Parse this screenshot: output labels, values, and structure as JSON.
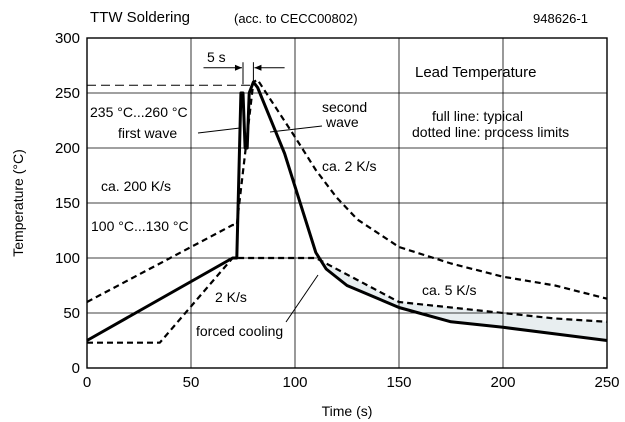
{
  "header": {
    "title": "TTW Soldering",
    "subtitle": "(acc. to CECC00802)",
    "figure_number": "948626-1"
  },
  "chart_data": {
    "type": "line",
    "title": "TTW Soldering",
    "xlabel": "Time (s)",
    "ylabel": "Temperature (°C)",
    "xlim": [
      0,
      250
    ],
    "ylim": [
      0,
      300
    ],
    "x_ticks": [
      0,
      50,
      100,
      150,
      200,
      250
    ],
    "y_ticks": [
      0,
      50,
      100,
      150,
      200,
      250,
      300
    ],
    "grid": true,
    "series": [
      {
        "style": "solid",
        "description_label": "typical",
        "points": [
          [
            0,
            25
          ],
          [
            70,
            100
          ],
          [
            72,
            100
          ],
          [
            74,
            250
          ],
          [
            75,
            250
          ],
          [
            76,
            200
          ],
          [
            77,
            200
          ],
          [
            78,
            250
          ],
          [
            80,
            260
          ],
          [
            82,
            255
          ],
          [
            95,
            195
          ],
          [
            105,
            135
          ],
          [
            110,
            105
          ],
          [
            115,
            90
          ],
          [
            125,
            75
          ],
          [
            150,
            55
          ],
          [
            175,
            42
          ],
          [
            200,
            37
          ],
          [
            225,
            31
          ],
          [
            250,
            25
          ]
        ]
      },
      {
        "style": "dotted",
        "description_label": "process limits (upper)",
        "points": [
          [
            0,
            60
          ],
          [
            70,
            130
          ],
          [
            72,
            130
          ],
          [
            80,
            260
          ],
          [
            82,
            262
          ],
          [
            100,
            210
          ],
          [
            110,
            180
          ],
          [
            120,
            155
          ],
          [
            130,
            135
          ],
          [
            150,
            110
          ],
          [
            175,
            95
          ],
          [
            200,
            83
          ],
          [
            225,
            75
          ],
          [
            250,
            63
          ]
        ]
      },
      {
        "style": "dotted",
        "description_label": "process limits (lower)",
        "points": [
          [
            0,
            23
          ],
          [
            35,
            23
          ],
          [
            70,
            100
          ],
          [
            72,
            100
          ],
          [
            110,
            100
          ],
          [
            130,
            80
          ],
          [
            150,
            60
          ],
          [
            175,
            55
          ],
          [
            200,
            50
          ],
          [
            225,
            45
          ],
          [
            250,
            42
          ]
        ]
      }
    ],
    "annotations": {
      "lead_temp": "Lead Temperature",
      "legend_full": "full line: typical",
      "legend_dotted": "dotted line: process limits",
      "temp_range_wave": "235 °C...260 °C",
      "first_wave": "first wave",
      "second_wave_1": "second",
      "second_wave_2": "wave",
      "rate_200": "ca. 200 K/s",
      "rate_2_hot": "ca. 2 K/s",
      "temp_range_preheat": "100 °C...130 °C",
      "rate_2": "2 K/s",
      "rate_5": "ca. 5 K/s",
      "forced_cooling": "forced cooling",
      "interval": "5 s"
    },
    "colors": {
      "line": "#000000",
      "shade": "#e8eef0",
      "grid": "#000000"
    }
  }
}
